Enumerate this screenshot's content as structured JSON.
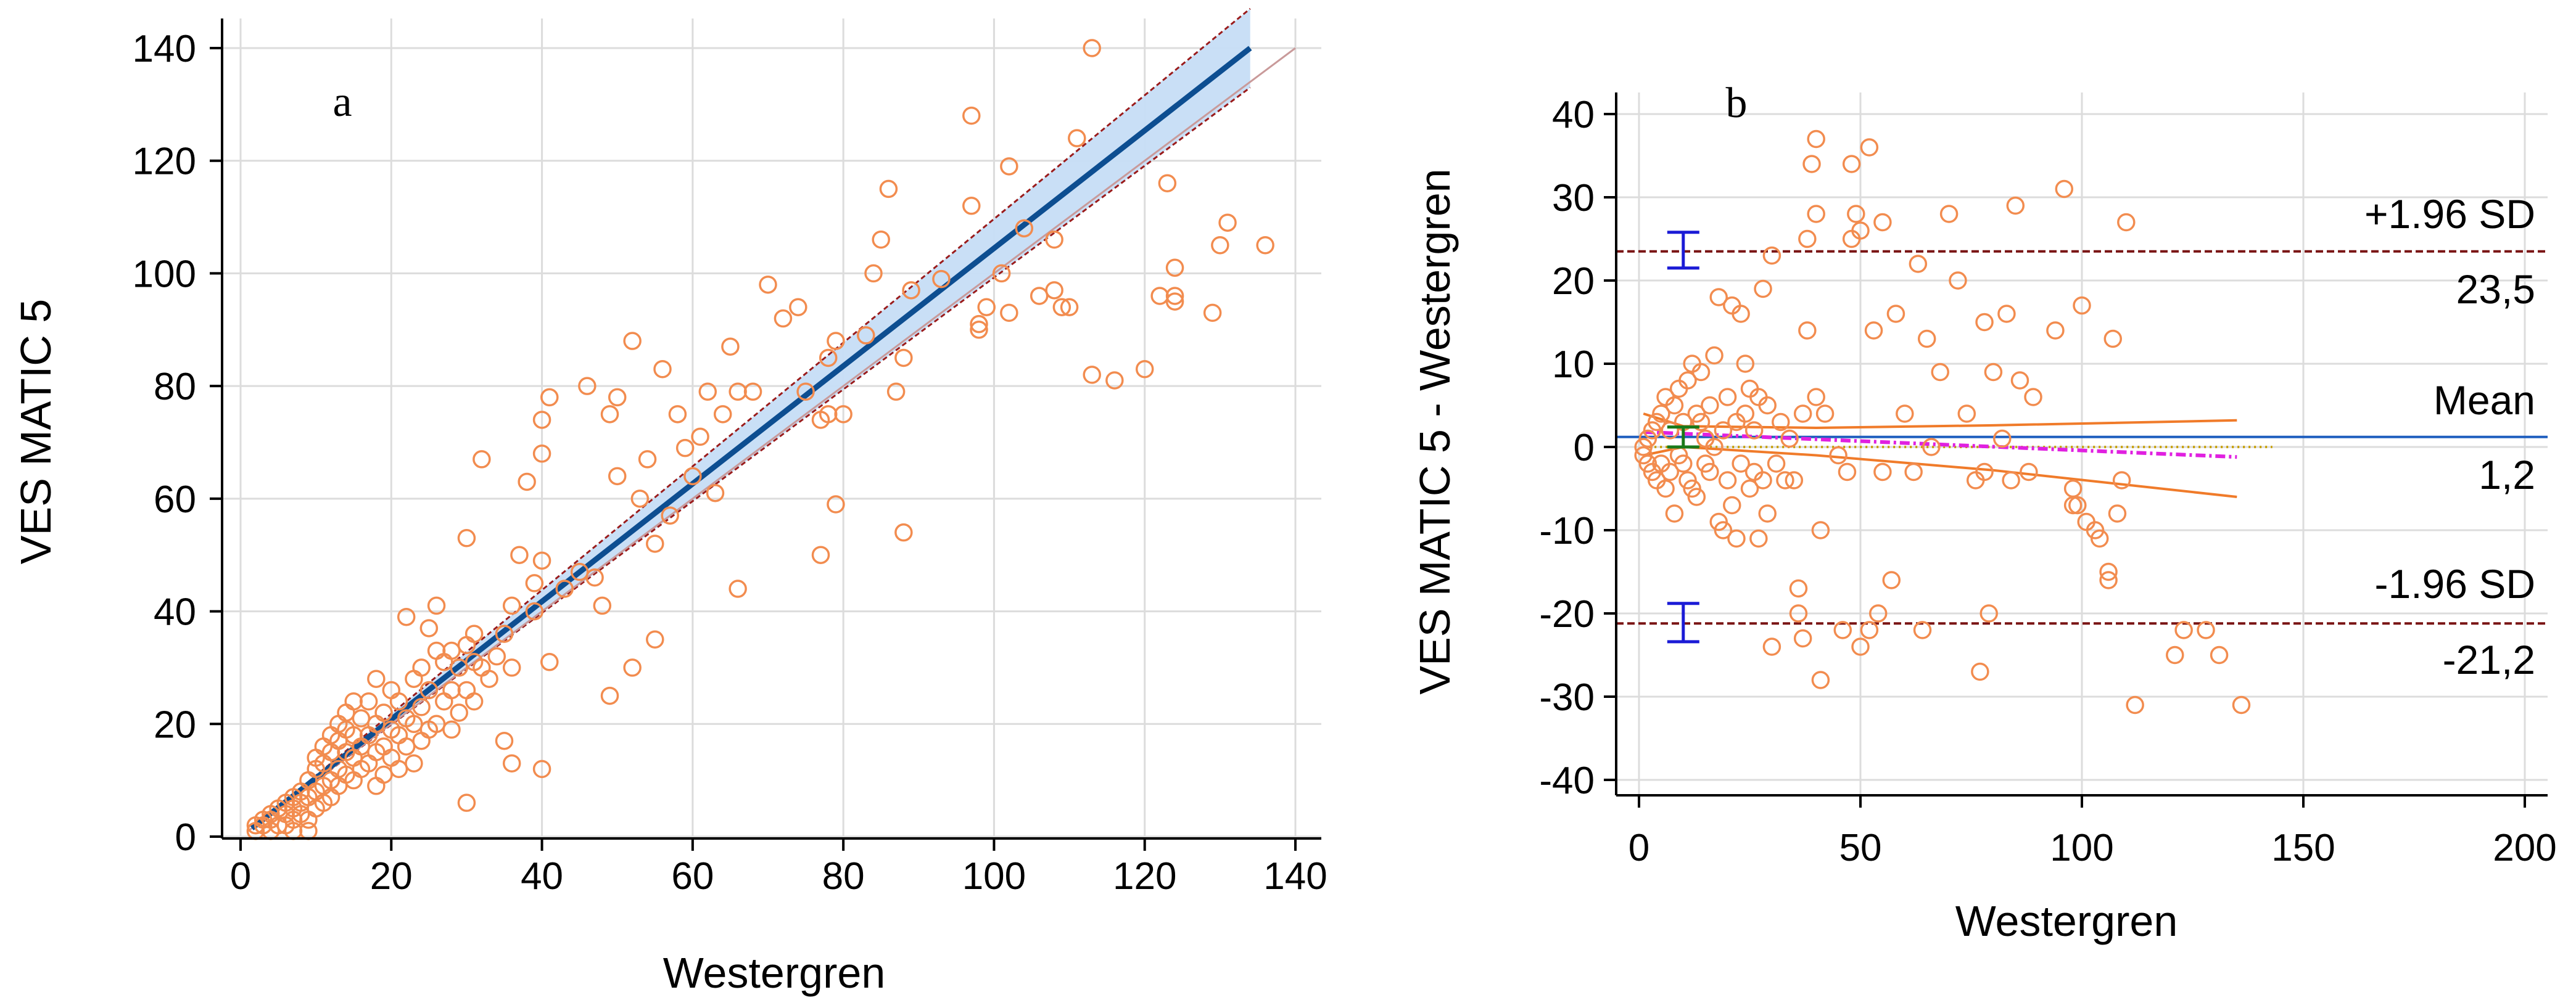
{
  "chart_data": [
    {
      "panel_label": "a",
      "type": "scatter",
      "title": "",
      "xlabel": "Westergren",
      "ylabel": "VES MATIC 5",
      "xlim": [
        0,
        140
      ],
      "ylim": [
        0,
        140
      ],
      "xticks": [
        0,
        20,
        40,
        60,
        80,
        100,
        120,
        140
      ],
      "yticks": [
        0,
        20,
        40,
        60,
        80,
        100,
        120,
        140
      ],
      "grid": true,
      "colors": {
        "points": "#f28c4f",
        "regression": "#0d4e91",
        "ci_band": "#c6ddf5",
        "ci_edge": "#9a1b1b",
        "identity": "#c99a9a"
      },
      "regression_line": {
        "x": [
          1.5,
          134
        ],
        "y": [
          1.5,
          140
        ]
      },
      "ci_band": {
        "x": [
          1.5,
          134
        ],
        "upper": [
          1.5,
          147
        ],
        "lower": [
          1.5,
          133
        ]
      },
      "identity_line": {
        "x": [
          1,
          140
        ],
        "y": [
          1,
          140
        ]
      },
      "points": [
        [
          2,
          1
        ],
        [
          2,
          2
        ],
        [
          3,
          2
        ],
        [
          3,
          3
        ],
        [
          4,
          1
        ],
        [
          4,
          3
        ],
        [
          4,
          4
        ],
        [
          5,
          2
        ],
        [
          5,
          5
        ],
        [
          6,
          2
        ],
        [
          6,
          4
        ],
        [
          6,
          6
        ],
        [
          7,
          3
        ],
        [
          7,
          5
        ],
        [
          7,
          7
        ],
        [
          7,
          1
        ],
        [
          8,
          4
        ],
        [
          8,
          6
        ],
        [
          8,
          8
        ],
        [
          9,
          3
        ],
        [
          9,
          7
        ],
        [
          9,
          10
        ],
        [
          9,
          1
        ],
        [
          10,
          5
        ],
        [
          10,
          8
        ],
        [
          10,
          12
        ],
        [
          10,
          14
        ],
        [
          11,
          6
        ],
        [
          11,
          9
        ],
        [
          11,
          13
        ],
        [
          11,
          16
        ],
        [
          12,
          7
        ],
        [
          12,
          10
        ],
        [
          12,
          15
        ],
        [
          12,
          18
        ],
        [
          13,
          9
        ],
        [
          13,
          12
        ],
        [
          13,
          17
        ],
        [
          13,
          20
        ],
        [
          14,
          11
        ],
        [
          14,
          15
        ],
        [
          14,
          19
        ],
        [
          14,
          22
        ],
        [
          15,
          10
        ],
        [
          15,
          14
        ],
        [
          15,
          18
        ],
        [
          15,
          24
        ],
        [
          16,
          12
        ],
        [
          16,
          16
        ],
        [
          16,
          21
        ],
        [
          17,
          13
        ],
        [
          17,
          18
        ],
        [
          17,
          24
        ],
        [
          18,
          9
        ],
        [
          18,
          15
        ],
        [
          18,
          20
        ],
        [
          18,
          28
        ],
        [
          19,
          11
        ],
        [
          19,
          16
        ],
        [
          19,
          22
        ],
        [
          20,
          14
        ],
        [
          20,
          19
        ],
        [
          20,
          26
        ],
        [
          21,
          12
        ],
        [
          21,
          18
        ],
        [
          21,
          24
        ],
        [
          22,
          16
        ],
        [
          22,
          21
        ],
        [
          22,
          39
        ],
        [
          23,
          13
        ],
        [
          23,
          20
        ],
        [
          23,
          28
        ],
        [
          24,
          17
        ],
        [
          24,
          23
        ],
        [
          24,
          30
        ],
        [
          25,
          19
        ],
        [
          25,
          26
        ],
        [
          25,
          37
        ],
        [
          26,
          20
        ],
        [
          26,
          33
        ],
        [
          26,
          41
        ],
        [
          27,
          24
        ],
        [
          27,
          31
        ],
        [
          28,
          19
        ],
        [
          28,
          26
        ],
        [
          28,
          33
        ],
        [
          29,
          22
        ],
        [
          29,
          30
        ],
        [
          30,
          6
        ],
        [
          30,
          26
        ],
        [
          30,
          34
        ],
        [
          30,
          53
        ],
        [
          31,
          24
        ],
        [
          31,
          31
        ],
        [
          31,
          36
        ],
        [
          32,
          30
        ],
        [
          32,
          67
        ],
        [
          33,
          28
        ],
        [
          34,
          32
        ],
        [
          35,
          17
        ],
        [
          35,
          36
        ],
        [
          36,
          13
        ],
        [
          36,
          30
        ],
        [
          36,
          41
        ],
        [
          37,
          50
        ],
        [
          38,
          63
        ],
        [
          39,
          45
        ],
        [
          39,
          40
        ],
        [
          40,
          12
        ],
        [
          40,
          49
        ],
        [
          40,
          68
        ],
        [
          40,
          74
        ],
        [
          41,
          31
        ],
        [
          41,
          78
        ],
        [
          43,
          44
        ],
        [
          45,
          47
        ],
        [
          46,
          80
        ],
        [
          47,
          46
        ],
        [
          48,
          41
        ],
        [
          49,
          25
        ],
        [
          49,
          75
        ],
        [
          50,
          78
        ],
        [
          50,
          64
        ],
        [
          52,
          30
        ],
        [
          52,
          88
        ],
        [
          53,
          60
        ],
        [
          54,
          67
        ],
        [
          55,
          35
        ],
        [
          55,
          52
        ],
        [
          56,
          83
        ],
        [
          57,
          57
        ],
        [
          58,
          75
        ],
        [
          59,
          69
        ],
        [
          60,
          64
        ],
        [
          61,
          71
        ],
        [
          62,
          79
        ],
        [
          63,
          61
        ],
        [
          64,
          75
        ],
        [
          65,
          87
        ],
        [
          66,
          44
        ],
        [
          66,
          79
        ],
        [
          68,
          79
        ],
        [
          70,
          98
        ],
        [
          72,
          92
        ],
        [
          74,
          94
        ],
        [
          75,
          79
        ],
        [
          77,
          50
        ],
        [
          77,
          74
        ],
        [
          78,
          75
        ],
        [
          78,
          85
        ],
        [
          79,
          59
        ],
        [
          79,
          88
        ],
        [
          80,
          75
        ],
        [
          83,
          89
        ],
        [
          84,
          100
        ],
        [
          85,
          106
        ],
        [
          86,
          115
        ],
        [
          87,
          79
        ],
        [
          88,
          54
        ],
        [
          88,
          85
        ],
        [
          89,
          97
        ],
        [
          93,
          99
        ],
        [
          97,
          128
        ],
        [
          97,
          112
        ],
        [
          98,
          90
        ],
        [
          98,
          91
        ],
        [
          99,
          94
        ],
        [
          101,
          100
        ],
        [
          102,
          93
        ],
        [
          102,
          119
        ],
        [
          104,
          108
        ],
        [
          106,
          96
        ],
        [
          108,
          97
        ],
        [
          108,
          106
        ],
        [
          109,
          94
        ],
        [
          110,
          94
        ],
        [
          111,
          124
        ],
        [
          113,
          140
        ],
        [
          113,
          82
        ],
        [
          116,
          81
        ],
        [
          120,
          83
        ],
        [
          122,
          96
        ],
        [
          123,
          116
        ],
        [
          124,
          96
        ],
        [
          124,
          101
        ],
        [
          124,
          95
        ],
        [
          129,
          93
        ],
        [
          130,
          105
        ],
        [
          131,
          109
        ],
        [
          136,
          105
        ]
      ]
    },
    {
      "panel_label": "b",
      "type": "scatter",
      "title": "",
      "xlabel": "Westergren",
      "ylabel": "VES MATIC 5 - Westergren",
      "xlim": [
        0,
        200
      ],
      "ylim": [
        -40,
        40
      ],
      "xticks": [
        0,
        50,
        100,
        150,
        200
      ],
      "yticks": [
        -40,
        -30,
        -20,
        -10,
        0,
        10,
        20,
        30,
        40
      ],
      "grid": true,
      "colors": {
        "points": "#f28c4f",
        "mean_line": "#1f5fbf",
        "limit_line": "#7a1414",
        "ci_bar_limits": "#1b1bd6",
        "ci_bar_mean": "#1a7a1a",
        "curves": "#f07b2a",
        "regression": "#e020e0",
        "zero_line": "#c8a000"
      },
      "upper_loa": {
        "value": 23.5,
        "label": "+1.96 SD",
        "value_label": "23,5",
        "ci": [
          21.5,
          25.8
        ]
      },
      "mean": {
        "value": 1.2,
        "label": "Mean",
        "value_label": "1,2",
        "ci": [
          0.0,
          2.4
        ]
      },
      "lower_loa": {
        "value": -21.2,
        "label": "-1.96 SD",
        "value_label": "-21,2",
        "ci": [
          -23.4,
          -18.8
        ]
      },
      "ci_bar_x": 10,
      "upper_curve": {
        "x": [
          1,
          10,
          40,
          80,
          135
        ],
        "y": [
          4,
          2.5,
          2.3,
          2.6,
          3.2
        ]
      },
      "lower_curve": {
        "x": [
          1,
          10,
          40,
          80,
          135
        ],
        "y": [
          -1,
          0,
          -1.0,
          -2.8,
          -6
        ]
      },
      "regression_line": {
        "x": [
          1,
          135
        ],
        "y": [
          1.8,
          -1.2
        ]
      },
      "zero_line": {
        "x": [
          1,
          143
        ],
        "y": [
          0,
          0
        ]
      },
      "points": [
        [
          1,
          0
        ],
        [
          1,
          -1
        ],
        [
          2,
          1
        ],
        [
          2,
          -2
        ],
        [
          3,
          -3
        ],
        [
          3,
          2
        ],
        [
          4,
          -4
        ],
        [
          4,
          3
        ],
        [
          5,
          -2
        ],
        [
          5,
          4
        ],
        [
          6,
          -5
        ],
        [
          6,
          6
        ],
        [
          7,
          2
        ],
        [
          7,
          -3
        ],
        [
          8,
          -8
        ],
        [
          8,
          5
        ],
        [
          9,
          -1
        ],
        [
          9,
          7
        ],
        [
          10,
          -2
        ],
        [
          10,
          3
        ],
        [
          11,
          -4
        ],
        [
          11,
          8
        ],
        [
          12,
          -5
        ],
        [
          12,
          10
        ],
        [
          13,
          4
        ],
        [
          13,
          -6
        ],
        [
          14,
          3
        ],
        [
          14,
          9
        ],
        [
          15,
          -2
        ],
        [
          15,
          1
        ],
        [
          16,
          -3
        ],
        [
          16,
          5
        ],
        [
          17,
          0
        ],
        [
          17,
          11
        ],
        [
          18,
          18
        ],
        [
          18,
          -9
        ],
        [
          19,
          -10
        ],
        [
          19,
          2
        ],
        [
          20,
          -4
        ],
        [
          20,
          6
        ],
        [
          21,
          17
        ],
        [
          21,
          -7
        ],
        [
          22,
          -11
        ],
        [
          22,
          3
        ],
        [
          23,
          -2
        ],
        [
          23,
          16
        ],
        [
          24,
          4
        ],
        [
          24,
          10
        ],
        [
          25,
          -5
        ],
        [
          25,
          7
        ],
        [
          26,
          2
        ],
        [
          26,
          -3
        ],
        [
          27,
          6
        ],
        [
          27,
          -11
        ],
        [
          28,
          -4
        ],
        [
          28,
          19
        ],
        [
          29,
          5
        ],
        [
          29,
          -8
        ],
        [
          30,
          23
        ],
        [
          30,
          -24
        ],
        [
          31,
          -2
        ],
        [
          32,
          3
        ],
        [
          33,
          -4
        ],
        [
          34,
          1
        ],
        [
          35,
          -4
        ],
        [
          36,
          -17
        ],
        [
          36,
          -20
        ],
        [
          37,
          -23
        ],
        [
          37,
          4
        ],
        [
          38,
          14
        ],
        [
          38,
          25
        ],
        [
          39,
          34
        ],
        [
          40,
          37
        ],
        [
          40,
          28
        ],
        [
          40,
          6
        ],
        [
          41,
          -10
        ],
        [
          41,
          -28
        ],
        [
          42,
          4
        ],
        [
          45,
          -1
        ],
        [
          46,
          -22
        ],
        [
          47,
          -3
        ],
        [
          48,
          25
        ],
        [
          48,
          34
        ],
        [
          49,
          28
        ],
        [
          50,
          26
        ],
        [
          50,
          -24
        ],
        [
          52,
          36
        ],
        [
          52,
          -22
        ],
        [
          53,
          14
        ],
        [
          54,
          -20
        ],
        [
          55,
          -3
        ],
        [
          55,
          27
        ],
        [
          57,
          -16
        ],
        [
          58,
          16
        ],
        [
          60,
          4
        ],
        [
          62,
          -3
        ],
        [
          63,
          22
        ],
        [
          64,
          -22
        ],
        [
          65,
          13
        ],
        [
          66,
          0
        ],
        [
          68,
          9
        ],
        [
          70,
          28
        ],
        [
          72,
          20
        ],
        [
          74,
          4
        ],
        [
          76,
          -4
        ],
        [
          77,
          -27
        ],
        [
          78,
          15
        ],
        [
          78,
          -3
        ],
        [
          79,
          -20
        ],
        [
          80,
          9
        ],
        [
          82,
          1
        ],
        [
          83,
          16
        ],
        [
          84,
          -4
        ],
        [
          85,
          29
        ],
        [
          86,
          8
        ],
        [
          88,
          -3
        ],
        [
          89,
          6
        ],
        [
          94,
          14
        ],
        [
          96,
          31
        ],
        [
          98,
          -5
        ],
        [
          98,
          -7
        ],
        [
          99,
          -7
        ],
        [
          100,
          17
        ],
        [
          101,
          -9
        ],
        [
          103,
          -10
        ],
        [
          104,
          -11
        ],
        [
          106,
          -15
        ],
        [
          106,
          -16
        ],
        [
          107,
          13
        ],
        [
          108,
          -8
        ],
        [
          109,
          -4
        ],
        [
          110,
          27
        ],
        [
          112,
          -31
        ],
        [
          121,
          -25
        ],
        [
          123,
          -22
        ],
        [
          128,
          -22
        ],
        [
          131,
          -25
        ],
        [
          136,
          -31
        ]
      ]
    }
  ]
}
